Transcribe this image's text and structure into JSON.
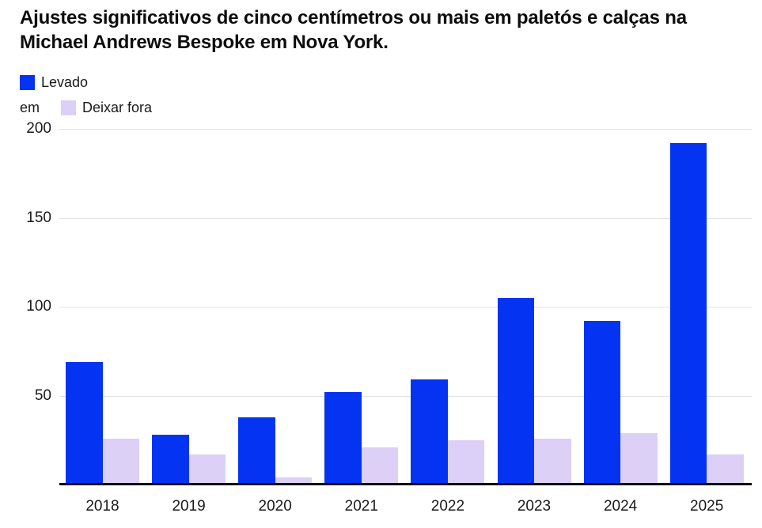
{
  "chart_data": {
    "type": "bar",
    "title": "Ajustes significativos de cinco centímetros ou mais em paletós e calças na Michael Andrews Bespoke em Nova York.",
    "categories": [
      "2018",
      "2019",
      "2020",
      "2021",
      "2022",
      "2023",
      "2024",
      "2025"
    ],
    "series": [
      {
        "name": "Levado em",
        "color": "#0533f2",
        "values": [
          69,
          28,
          38,
          52,
          59,
          105,
          92,
          192
        ]
      },
      {
        "name": "Deixar fora",
        "color": "#dcd0f6",
        "values": [
          26,
          17,
          4,
          21,
          25,
          26,
          29,
          17
        ]
      }
    ],
    "xlabel": "",
    "ylabel": "",
    "ylim": [
      0,
      200
    ],
    "yticks": [
      50,
      100,
      150,
      200
    ],
    "grid": true,
    "legend_position": "top-left"
  },
  "legend": {
    "item1_word1": "Levado",
    "item1_word2": "em",
    "item2_label": "Deixar fora"
  },
  "colors": {
    "levado": "#0533f2",
    "deixar_fora": "#dcd0f6",
    "gridline": "#e2e2e2",
    "axis_line": "#000000",
    "text": "#1a1a1a"
  }
}
